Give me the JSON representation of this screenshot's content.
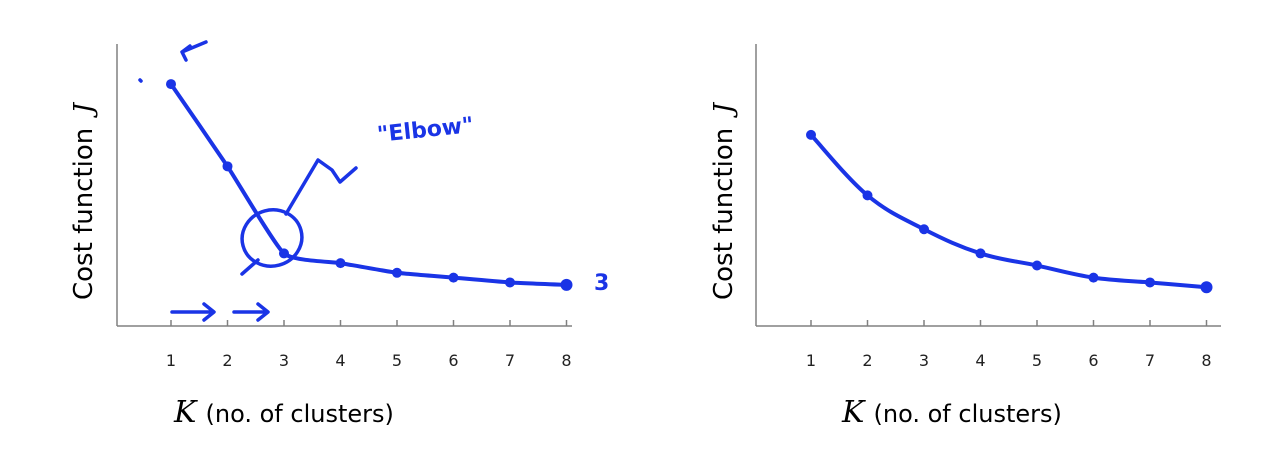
{
  "chart_data": [
    {
      "type": "line",
      "ylabel": "Cost function",
      "ylabel_symbol": "J",
      "xlabel_symbol": "K",
      "xlabel": "(no. of clusters)",
      "x_ticks": [
        "1",
        "2",
        "3",
        "4",
        "5",
        "6",
        "7",
        "8"
      ],
      "x": [
        1,
        2,
        3,
        4,
        5,
        6,
        7,
        8
      ],
      "y": [
        100,
        66,
        30,
        26,
        22,
        20,
        18,
        17
      ],
      "ylim": [
        0,
        105
      ],
      "grid": false,
      "annotation_elbow": "\"Elbow\"",
      "annotation_3": "3"
    },
    {
      "type": "line",
      "ylabel": "Cost function",
      "ylabel_symbol": "J",
      "xlabel_symbol": "K",
      "xlabel": "(no. of clusters)",
      "x_ticks": [
        "1",
        "2",
        "3",
        "4",
        "5",
        "6",
        "7",
        "8"
      ],
      "x": [
        1,
        2,
        3,
        4,
        5,
        6,
        7,
        8
      ],
      "y": [
        79,
        54,
        40,
        30,
        25,
        20,
        18,
        16
      ],
      "ylim": [
        0,
        105
      ],
      "grid": false
    }
  ],
  "colors": {
    "ink": "#1a34e6",
    "axis": "#808080"
  }
}
